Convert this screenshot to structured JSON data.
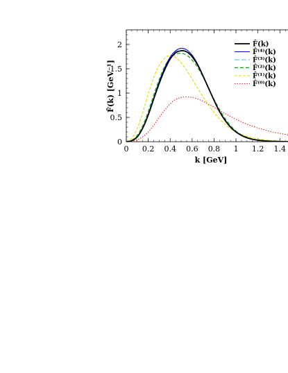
{
  "chart_data": {
    "type": "line",
    "xlabel": "k [GeV]",
    "ylabel": "F̂(k) [GeV⁻¹]",
    "xlim": [
      0,
      1.55
    ],
    "ylim": [
      0,
      2.3
    ],
    "xticks": [
      {
        "value": 0,
        "label": "0"
      },
      {
        "value": 0.2,
        "label": "0.2"
      },
      {
        "value": 0.4,
        "label": "0.4"
      },
      {
        "value": 0.6,
        "label": "0.6"
      },
      {
        "value": 0.8,
        "label": "0.8"
      },
      {
        "value": 1.0,
        "label": "1"
      },
      {
        "value": 1.2,
        "label": "1.2"
      },
      {
        "value": 1.4,
        "label": "1.4"
      }
    ],
    "yticks": [
      {
        "value": 0,
        "label": "0"
      },
      {
        "value": 0.5,
        "label": "0.5"
      },
      {
        "value": 1.0,
        "label": "1"
      },
      {
        "value": 1.5,
        "label": "1.5"
      },
      {
        "value": 2.0,
        "label": "2"
      }
    ],
    "grid": false,
    "legend_position": "top-right",
    "x": [
      0,
      0.05,
      0.1,
      0.15,
      0.2,
      0.25,
      0.3,
      0.35,
      0.4,
      0.45,
      0.5,
      0.55,
      0.6,
      0.65,
      0.7,
      0.75,
      0.8,
      0.85,
      0.9,
      0.95,
      1.0,
      1.05,
      1.1,
      1.15,
      1.2,
      1.25,
      1.3,
      1.35,
      1.4,
      1.45,
      1.5,
      1.55
    ],
    "series": [
      {
        "name": "F̂(k)",
        "color": "#000000",
        "width": 1.8,
        "dash": "",
        "values": [
          0,
          0.02,
          0.1,
          0.28,
          0.55,
          0.88,
          1.2,
          1.48,
          1.7,
          1.83,
          1.87,
          1.85,
          1.75,
          1.58,
          1.35,
          1.1,
          0.85,
          0.62,
          0.44,
          0.3,
          0.2,
          0.13,
          0.08,
          0.05,
          0.03,
          0.02,
          0.01,
          0.006,
          0.004,
          0.002,
          0.001,
          0.0
        ]
      },
      {
        "name": "F̂⁽⁴⁾(k)",
        "color": "#0000cc",
        "width": 1.1,
        "dash": "",
        "values": [
          0,
          0.02,
          0.1,
          0.28,
          0.56,
          0.9,
          1.23,
          1.52,
          1.74,
          1.87,
          1.92,
          1.89,
          1.78,
          1.6,
          1.36,
          1.1,
          0.85,
          0.62,
          0.44,
          0.3,
          0.2,
          0.13,
          0.08,
          0.05,
          0.03,
          0.02,
          0.01,
          0.006,
          0.004,
          0.002,
          0.001,
          0.0
        ]
      },
      {
        "name": "F̂⁽³⁾(k)",
        "color": "#44bbdd",
        "width": 1.1,
        "dash": "7,3",
        "values": [
          0,
          0.025,
          0.11,
          0.3,
          0.58,
          0.92,
          1.25,
          1.53,
          1.74,
          1.85,
          1.88,
          1.84,
          1.74,
          1.57,
          1.35,
          1.1,
          0.86,
          0.63,
          0.45,
          0.31,
          0.21,
          0.14,
          0.09,
          0.055,
          0.035,
          0.02,
          0.012,
          0.007,
          0.004,
          0.002,
          0.001,
          0.0
        ]
      },
      {
        "name": "F̂⁽²⁾(k)",
        "color": "#22aa22",
        "width": 1.4,
        "dash": "5,3",
        "values": [
          0,
          0.03,
          0.13,
          0.33,
          0.62,
          0.96,
          1.28,
          1.55,
          1.72,
          1.8,
          1.82,
          1.78,
          1.68,
          1.53,
          1.33,
          1.1,
          0.87,
          0.66,
          0.48,
          0.33,
          0.22,
          0.14,
          0.09,
          0.055,
          0.033,
          0.02,
          0.012,
          0.007,
          0.004,
          0.002,
          0.001,
          0.0
        ]
      },
      {
        "name": "F̂⁽¹⁾(k)",
        "color": "#dddd00",
        "width": 1.1,
        "dash": "4,2",
        "values": [
          0,
          0.07,
          0.27,
          0.6,
          0.98,
          1.32,
          1.57,
          1.72,
          1.77,
          1.73,
          1.62,
          1.47,
          1.29,
          1.1,
          0.92,
          0.75,
          0.6,
          0.47,
          0.36,
          0.27,
          0.2,
          0.15,
          0.11,
          0.08,
          0.055,
          0.04,
          0.028,
          0.02,
          0.014,
          0.01,
          0.007,
          0.005
        ]
      },
      {
        "name": "F̂⁽⁰⁾(k)",
        "color": "#dd2222",
        "width": 1.1,
        "dash": "1.5,2",
        "values": [
          0,
          0.01,
          0.04,
          0.1,
          0.2,
          0.34,
          0.5,
          0.65,
          0.78,
          0.87,
          0.91,
          0.92,
          0.91,
          0.88,
          0.83,
          0.77,
          0.71,
          0.64,
          0.58,
          0.52,
          0.46,
          0.41,
          0.36,
          0.32,
          0.28,
          0.25,
          0.22,
          0.19,
          0.17,
          0.15,
          0.13,
          0.11
        ]
      }
    ]
  }
}
